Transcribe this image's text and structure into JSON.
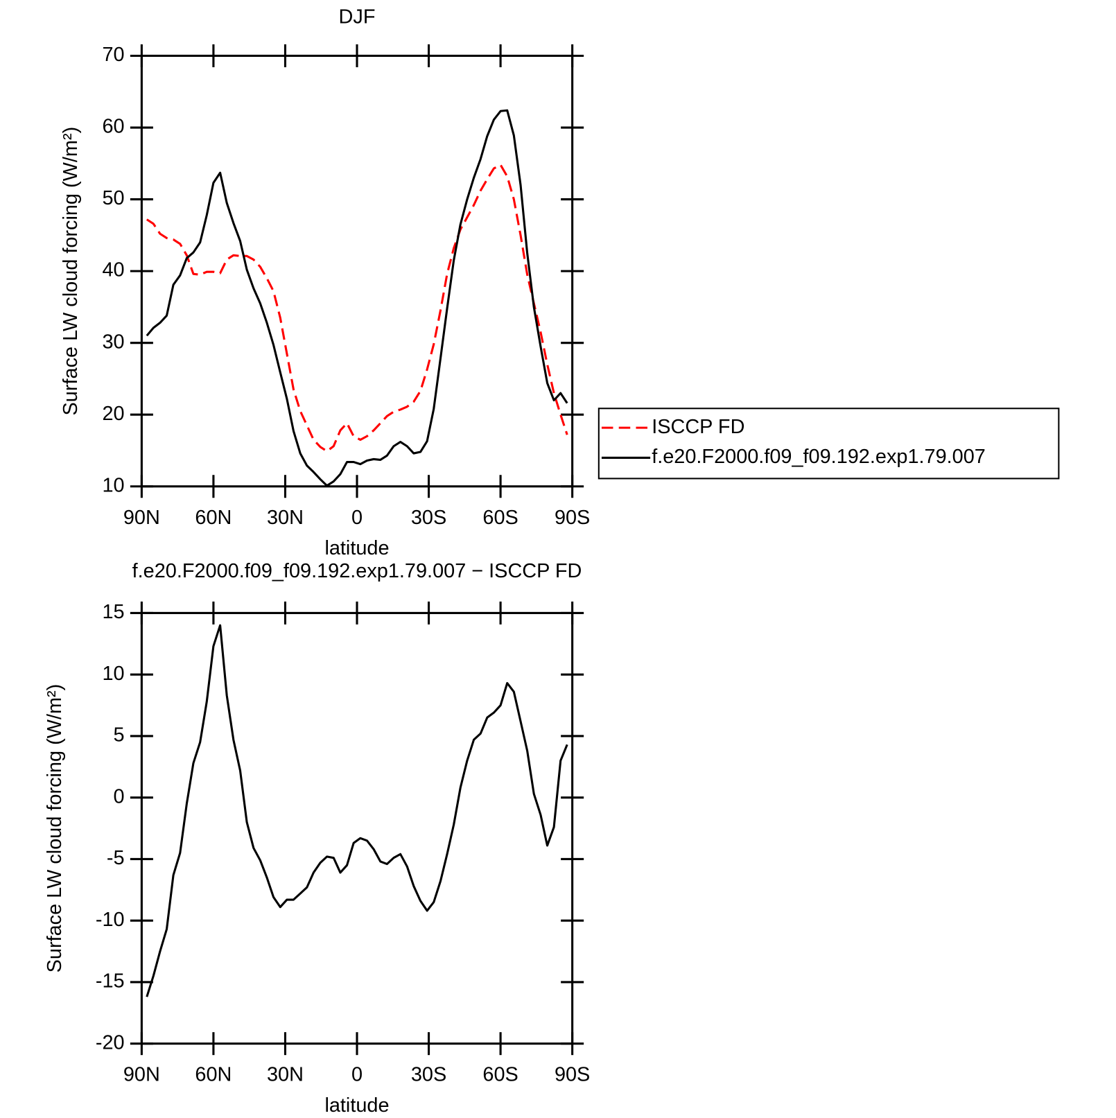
{
  "chart_data": [
    {
      "type": "line",
      "title": "DJF",
      "xlabel": "latitude",
      "ylabel": "Surface LW cloud forcing (W/m²)",
      "x": [
        87.86,
        85.1,
        82.31,
        79.53,
        76.74,
        73.95,
        71.16,
        68.37,
        65.58,
        62.79,
        60,
        57.21,
        54.42,
        51.63,
        48.84,
        46.04,
        43.25,
        40.46,
        37.67,
        34.88,
        32.09,
        29.3,
        26.51,
        23.72,
        20.93,
        18.14,
        15.35,
        12.56,
        9.77,
        6.98,
        4.19,
        1.4,
        -1.4,
        -4.19,
        -6.98,
        -9.77,
        -12.56,
        -15.35,
        -18.14,
        -20.93,
        -23.72,
        -26.51,
        -29.3,
        -32.09,
        -34.88,
        -37.67,
        -40.46,
        -43.25,
        -46.04,
        -48.84,
        -51.63,
        -54.42,
        -57.21,
        -60,
        -62.79,
        -65.58,
        -68.37,
        -71.16,
        -73.95,
        -76.74,
        -79.53,
        -82.31,
        -85.1,
        -87.86
      ],
      "series": [
        {
          "name": "ISCCP FD",
          "color": "#ff0000",
          "dash": true,
          "values": [
            47.2,
            46.6,
            45.2,
            44.6,
            44.4,
            43.8,
            42.2,
            39.6,
            39.5,
            39.9,
            39.9,
            39.7,
            41.6,
            42.2,
            42.1,
            42.1,
            41.6,
            40.6,
            39,
            37.2,
            33.5,
            28.5,
            23.5,
            20.5,
            18.5,
            16.5,
            15.5,
            14.9,
            15.6,
            17.8,
            18.8,
            17,
            16.5,
            17,
            17.8,
            18.8,
            19.8,
            20.4,
            20.7,
            21.1,
            21.8,
            23.3,
            26.3,
            29.8,
            34.5,
            39.6,
            43.2,
            45.8,
            47.5,
            49.2,
            51.2,
            52.8,
            54.3,
            54.8,
            53.2,
            50,
            45,
            39.5,
            35.5,
            31.5,
            27,
            23,
            20,
            17.2
          ]
        },
        {
          "name": "f.e20.F2000.f09_f09.192.exp1.79.007",
          "color": "#000000",
          "dash": false,
          "values": [
            31,
            32.1,
            32.8,
            33.8,
            38.1,
            39.4,
            41.8,
            42.6,
            44,
            47.8,
            52.3,
            53.7,
            49.5,
            46.7,
            44.2,
            40.2,
            37.6,
            35.5,
            32.8,
            29.7,
            25.9,
            22.2,
            17.7,
            14.6,
            12.9,
            12.0,
            11.0,
            10.1,
            10.7,
            11.7,
            13.4,
            13.4,
            13.1,
            13.6,
            13.8,
            13.7,
            14.3,
            15.6,
            16.2,
            15.6,
            14.6,
            14.8,
            16.3,
            20.8,
            27.8,
            34.8,
            41.5,
            46.5,
            50,
            53,
            55.6,
            58.8,
            61.1,
            62.3,
            62.4,
            58.9,
            52,
            42.5,
            35,
            29.5,
            24.4,
            22,
            23,
            21.6
          ]
        }
      ],
      "xlim": [
        90,
        -90
      ],
      "xticks": [
        {
          "value": 90,
          "label": "90N"
        },
        {
          "value": 60,
          "label": "60N"
        },
        {
          "value": 30,
          "label": "30N"
        },
        0,
        {
          "value": -30,
          "label": "30S"
        },
        {
          "value": -60,
          "label": "60S"
        },
        {
          "value": -90,
          "label": "90S"
        }
      ],
      "ylim": [
        10,
        70
      ],
      "yticks": [
        10,
        20,
        30,
        40,
        50,
        60,
        70
      ],
      "legend": "right"
    },
    {
      "type": "line",
      "title": "f.e20.F2000.f09_f09.192.exp1.79.007 − ISCCP FD",
      "xlabel": "latitude",
      "ylabel": "Surface LW cloud forcing (W/m²)",
      "x": [
        87.86,
        85.1,
        82.31,
        79.53,
        76.74,
        73.95,
        71.16,
        68.37,
        65.58,
        62.79,
        60,
        57.21,
        54.42,
        51.63,
        48.84,
        46.04,
        43.25,
        40.46,
        37.67,
        34.88,
        32.09,
        29.3,
        26.51,
        23.72,
        20.93,
        18.14,
        15.35,
        12.56,
        9.77,
        6.98,
        4.19,
        1.4,
        -1.4,
        -4.19,
        -6.98,
        -9.77,
        -12.56,
        -15.35,
        -18.14,
        -20.93,
        -23.72,
        -26.51,
        -29.3,
        -32.09,
        -34.88,
        -37.67,
        -40.46,
        -43.25,
        -46.04,
        -48.84,
        -51.63,
        -54.42,
        -57.21,
        -60,
        -62.79,
        -65.58,
        -68.37,
        -71.16,
        -73.95,
        -76.74,
        -79.53,
        -82.31,
        -85.1,
        -87.86
      ],
      "series": [
        {
          "color": "#000000",
          "dash": false,
          "values": [
            -16.2,
            -14.5,
            -12.5,
            -10.7,
            -6.3,
            -4.5,
            -0.5,
            2.8,
            4.5,
            7.8,
            12.3,
            14,
            8.3,
            4.7,
            2.2,
            -2,
            -4.1,
            -5.1,
            -6.5,
            -8.1,
            -8.9,
            -8.3,
            -8.3,
            -7.8,
            -7.3,
            -6.1,
            -5.3,
            -4.8,
            -4.9,
            -6.1,
            -5.5,
            -3.7,
            -3.3,
            -3.5,
            -4.2,
            -5.2,
            -5.4,
            -4.9,
            -4.6,
            -5.6,
            -7.2,
            -8.4,
            -9.2,
            -8.5,
            -6.8,
            -4.6,
            -2.2,
            0.8,
            3,
            4.7,
            5.2,
            6.5,
            6.9,
            7.5,
            9.3,
            8.6,
            6.2,
            3.8,
            0.3,
            -1.4,
            -3.9,
            -2.4,
            3,
            4.3
          ]
        }
      ],
      "xlim": [
        90,
        -90
      ],
      "xticks": [
        {
          "value": 90,
          "label": "90N"
        },
        {
          "value": 60,
          "label": "60N"
        },
        {
          "value": 30,
          "label": "30N"
        },
        0,
        {
          "value": -30,
          "label": "30S"
        },
        {
          "value": -60,
          "label": "60S"
        },
        {
          "value": -90,
          "label": "90S"
        }
      ],
      "ylim": [
        -20,
        15
      ],
      "yticks": [
        -20,
        -15,
        -10,
        -5,
        0,
        5,
        10,
        15
      ]
    }
  ]
}
